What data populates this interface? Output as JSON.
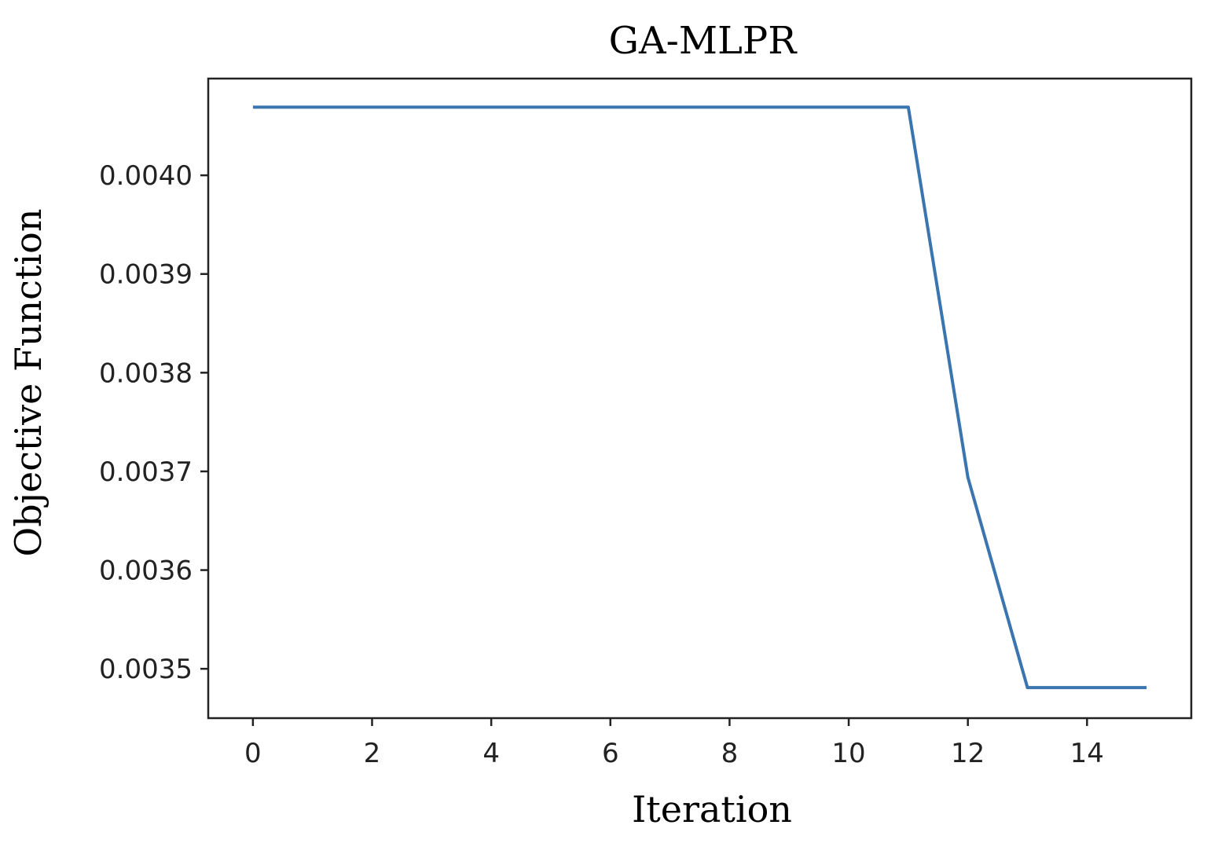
{
  "chart_data": {
    "type": "line",
    "title": "GA-MLPR",
    "xlabel": "Iteration",
    "ylabel": "Objective Function",
    "xlim": [
      -0.75,
      15.75
    ],
    "ylim": [
      0.00345,
      0.004098
    ],
    "xticks": [
      0,
      2,
      4,
      6,
      8,
      10,
      12,
      14
    ],
    "xtick_labels": [
      "0",
      "2",
      "4",
      "6",
      "8",
      "10",
      "12",
      "14"
    ],
    "yticks": [
      0.0035,
      0.0036,
      0.0037,
      0.0038,
      0.0039,
      0.004
    ],
    "ytick_labels": [
      "0.0035",
      "0.0036",
      "0.0037",
      "0.0038",
      "0.0039",
      "0.0040"
    ],
    "grid": false,
    "series": [
      {
        "color": "#3a75b0",
        "x": [
          0,
          1,
          2,
          3,
          4,
          5,
          6,
          7,
          8,
          9,
          10,
          11,
          12,
          13,
          14,
          15
        ],
        "values": [
          0.004069,
          0.004069,
          0.004069,
          0.004069,
          0.004069,
          0.004069,
          0.004069,
          0.004069,
          0.004069,
          0.004069,
          0.004069,
          0.004069,
          0.003694,
          0.003481,
          0.003481,
          0.003481
        ]
      }
    ]
  }
}
